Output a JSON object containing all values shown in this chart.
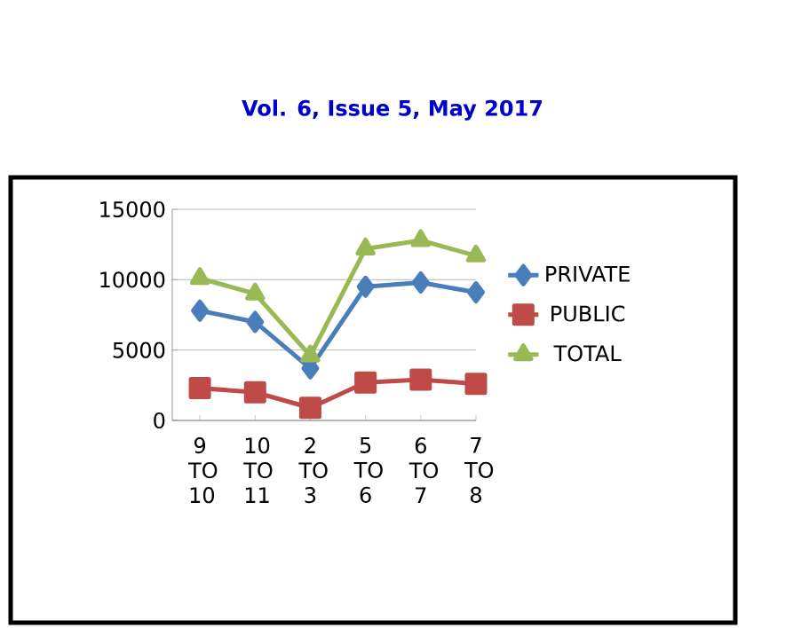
{
  "chart_data": {
    "type": "line",
    "annotations": [
      "Vol. 6, Issue 5, May 2017"
    ],
    "categories": [
      "9 TO 10",
      "10 TO 11",
      "2 TO 3",
      "5 TO 6",
      "6 TO 7",
      "7 TO 8"
    ],
    "series": [
      {
        "name": "PRIVATE",
        "color": "#4a7ebb",
        "marker": "diamond",
        "values": [
          7800,
          7000,
          3700,
          9500,
          9800,
          9100
        ]
      },
      {
        "name": "PUBLIC",
        "color": "#be4b48",
        "marker": "square",
        "values": [
          2300,
          2000,
          900,
          2700,
          2900,
          2600
        ]
      },
      {
        "name": "TOTAL",
        "color": "#98b954",
        "marker": "triangle",
        "values": [
          10100,
          9000,
          4600,
          12200,
          12800,
          11700
        ]
      }
    ],
    "ylim": [
      0,
      15000
    ],
    "yticks": [
      0,
      5000,
      10000,
      15000
    ],
    "grid": "y",
    "legend": "right"
  }
}
